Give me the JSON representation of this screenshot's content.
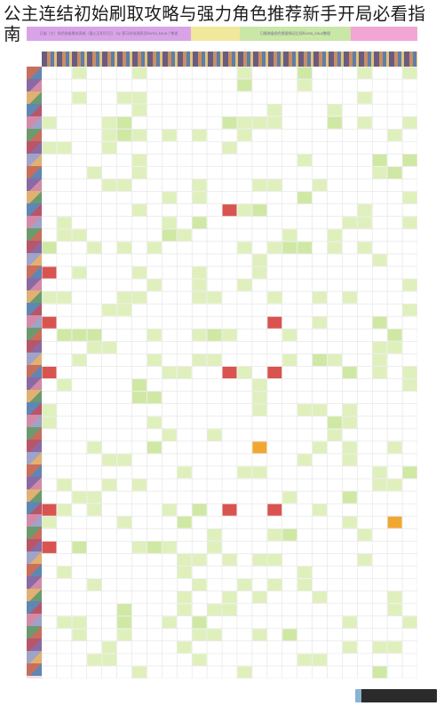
{
  "title": "公主连结初始刷取攻略与强力角色推荐新手开局必看指南",
  "sheet": {
    "header_segments": [
      {
        "text": "日服（大）角色装备需求表格（截止至8月1日） by 赛马刑场观察员Kurea_kaua / 整理",
        "color": "#d9a3e8"
      },
      {
        "text": "",
        "color": "#f1e89b"
      },
      {
        "text": "日服装备角色需要情况后续Kurea_kaua整理",
        "color": "#c9e7a6"
      },
      {
        "text": "",
        "color": "#f2a6d6"
      }
    ],
    "colors": {
      "header_bar": "#e7d6ef",
      "grid_line": "#e3e3e3",
      "cell_light_green": "#dff0bd",
      "cell_green": "#cfe8a4",
      "cell_red": "#d9534f",
      "cell_orange": "#f0a732",
      "cell_yellow": "#f6e27a",
      "left_strip": "#f3ddea"
    },
    "rows": 49,
    "cols": 25
  }
}
